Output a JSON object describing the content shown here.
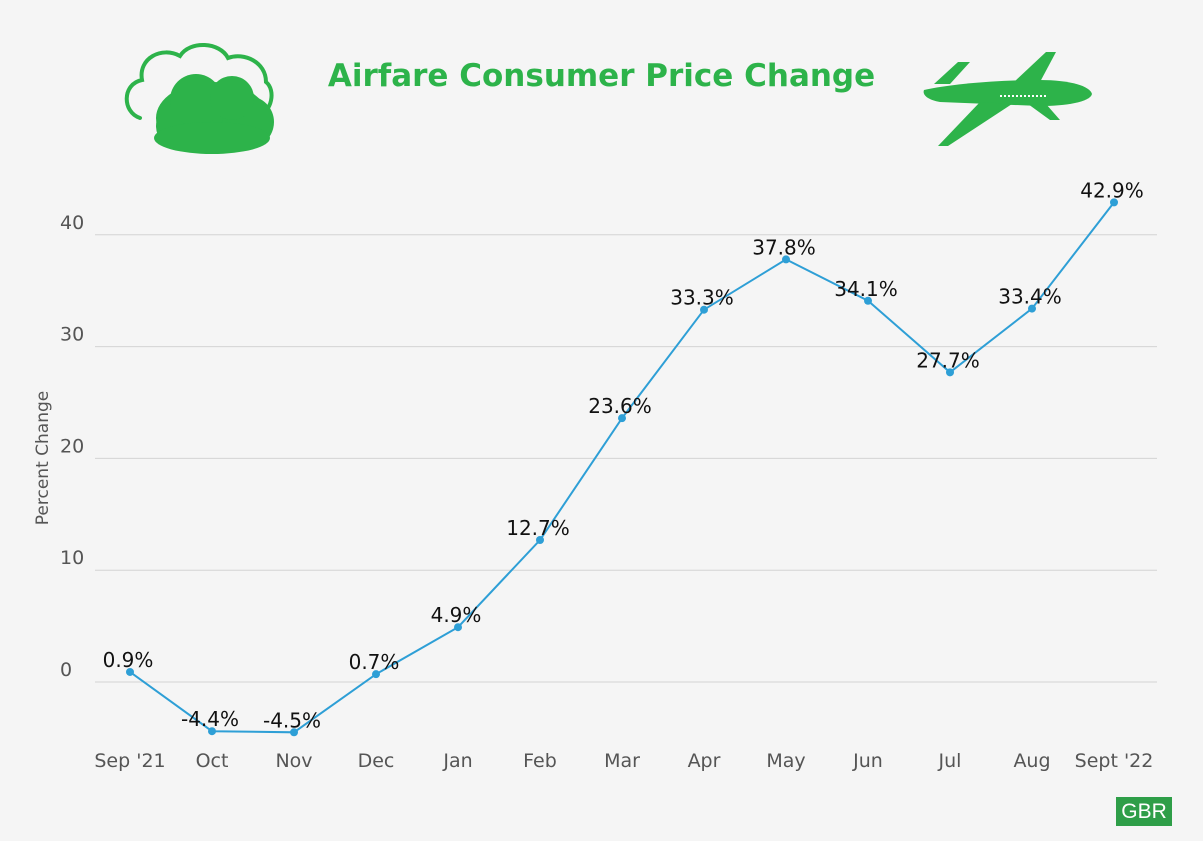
{
  "title": "Airfare Consumer Price Change",
  "badge": "GBR",
  "colors": {
    "accent": "#2db34a",
    "line": "#2e9fd6",
    "grid": "#d4d4d4"
  },
  "icons": {
    "left": "cloud-icon",
    "right": "airplane-icon"
  },
  "chart_data": {
    "type": "line",
    "title": "Airfare Consumer Price Change",
    "xlabel": "",
    "ylabel": "Percent Change",
    "categories": [
      "Sep '21",
      "Oct",
      "Nov",
      "Dec",
      "Jan",
      "Feb",
      "Mar",
      "Apr",
      "May",
      "Jun",
      "Jul",
      "Aug",
      "Sept '22"
    ],
    "values": [
      0.9,
      -4.4,
      -4.5,
      0.7,
      4.9,
      12.7,
      23.6,
      33.3,
      37.8,
      34.1,
      27.7,
      33.4,
      42.9
    ],
    "data_labels": [
      "0.9%",
      "-4.4%",
      "-4.5%",
      "0.7%",
      "4.9%",
      "12.7%",
      "23.6%",
      "33.3%",
      "37.8%",
      "34.1%",
      "27.7%",
      "33.4%",
      "42.9%"
    ],
    "yticks": [
      0,
      10,
      20,
      30,
      40
    ],
    "ylim": [
      -5,
      45
    ],
    "grid": true,
    "legend": "none"
  }
}
